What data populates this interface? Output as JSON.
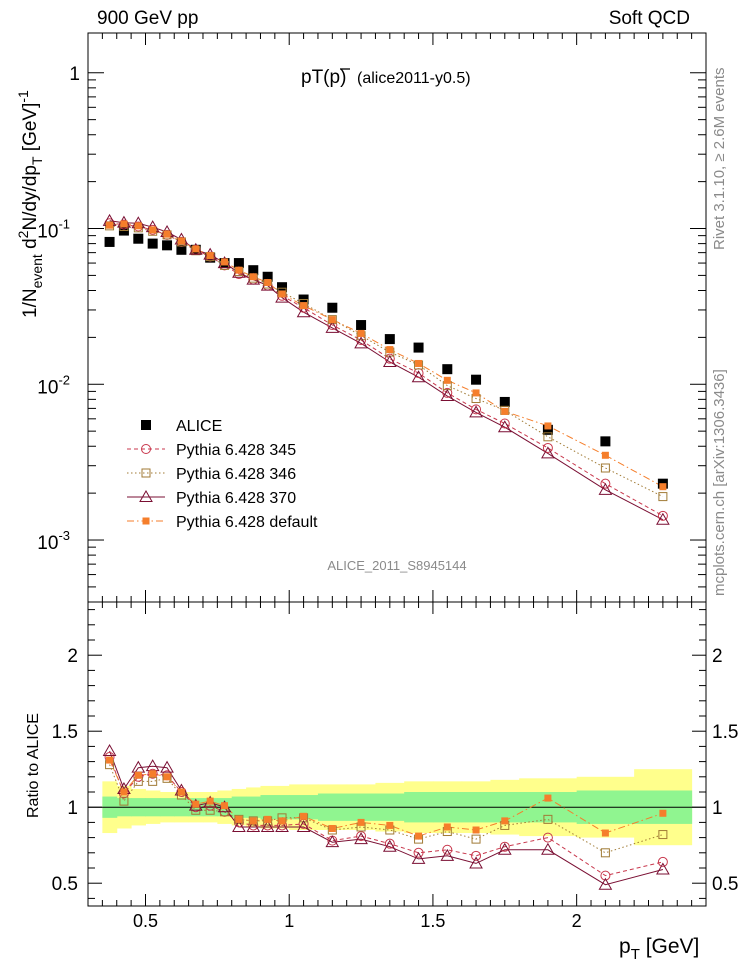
{
  "header": {
    "left": "900 GeV pp",
    "right": "Soft QCD"
  },
  "side_labels": {
    "rivet": "Rivet 3.1.10, ≥ 2.6M events",
    "mcplots": "mcplots.cern.ch [arXiv:1306.3436]"
  },
  "chart_data": [
    {
      "type": "scatter",
      "panel": "main",
      "title": "pT(p̅) (alice2011-y0.5)",
      "title_main": "pT(",
      "title_symbol": "p",
      "title_close": ")",
      "title_tag": "(alice2011-y0.5)",
      "watermark": "ALICE_2011_S8945144",
      "ylabel": "1/N_event d²N/dy/dp_T [GeV]⁻¹",
      "ylabel_parts": {
        "a": "1/N",
        "a_sub": "event",
        "b": " d",
        "b_sup": "2",
        "c": "N/dy/dp",
        "c_sub": "T",
        "d": " [GeV]",
        "d_sup": "-1"
      },
      "yscale": "log",
      "ylim": [
        0.0004,
        1.8
      ],
      "xlim": [
        0.3,
        2.45
      ],
      "yticks": [
        {
          "value": 1,
          "label": "1"
        },
        {
          "value": 0.1,
          "label": "10",
          "exp": "-1"
        },
        {
          "value": 0.01,
          "label": "10",
          "exp": "-2"
        },
        {
          "value": 0.001,
          "label": "10",
          "exp": "-3"
        }
      ],
      "x": [
        0.375,
        0.425,
        0.475,
        0.525,
        0.575,
        0.625,
        0.675,
        0.725,
        0.775,
        0.825,
        0.875,
        0.925,
        0.975,
        1.05,
        1.15,
        1.25,
        1.35,
        1.45,
        1.55,
        1.65,
        1.75,
        1.9,
        2.1,
        2.3
      ],
      "legend": [
        "ALICE",
        "Pythia 6.428 345",
        "Pythia 6.428 346",
        "Pythia 6.428 370",
        "Pythia 6.428 default"
      ],
      "legend_position": "bottom-left",
      "series": [
        {
          "name": "ALICE",
          "color": "#000000",
          "marker": "filled-square",
          "line": "none",
          "values": [
            0.082,
            0.097,
            0.086,
            0.08,
            0.078,
            0.073,
            0.073,
            0.065,
            0.06,
            0.06,
            0.054,
            0.049,
            0.042,
            0.035,
            0.031,
            0.024,
            0.0195,
            0.0172,
            0.0125,
            0.0107,
            0.0077,
            0.0051,
            0.0043,
            0.0023
          ]
        },
        {
          "name": "Pythia 6.428 345",
          "color": "#c8374c",
          "marker": "open-circle",
          "line": "dashed",
          "values": [
            0.108,
            0.106,
            0.103,
            0.098,
            0.091,
            0.082,
            0.073,
            0.066,
            0.058,
            0.051,
            0.047,
            0.043,
            0.037,
            0.031,
            0.024,
            0.0192,
            0.0146,
            0.0118,
            0.0088,
            0.0069,
            0.0056,
            0.0039,
            0.0023,
            0.00143
          ]
        },
        {
          "name": "Pythia 6.428 346",
          "color": "#a07a35",
          "marker": "open-square",
          "line": "dotted",
          "values": [
            0.104,
            0.103,
            0.101,
            0.096,
            0.091,
            0.082,
            0.072,
            0.066,
            0.058,
            0.053,
            0.048,
            0.044,
            0.039,
            0.033,
            0.026,
            0.0205,
            0.0161,
            0.0133,
            0.0098,
            0.0081,
            0.0068,
            0.0046,
            0.0029,
            0.0019
          ]
        },
        {
          "name": "Pythia 6.428 370",
          "color": "#7a0f33",
          "marker": "open-triangle",
          "line": "solid",
          "values": [
            0.112,
            0.109,
            0.108,
            0.102,
            0.095,
            0.085,
            0.073,
            0.068,
            0.06,
            0.052,
            0.047,
            0.043,
            0.036,
            0.029,
            0.023,
            0.0183,
            0.0139,
            0.0111,
            0.0084,
            0.0066,
            0.0053,
            0.0036,
            0.0021,
            0.00135
          ]
        },
        {
          "name": "Pythia 6.428 default",
          "color": "#f57e2b",
          "marker": "filled-square",
          "line": "dashdot",
          "values": [
            0.105,
            0.107,
            0.104,
            0.098,
            0.092,
            0.083,
            0.074,
            0.067,
            0.061,
            0.054,
            0.049,
            0.045,
            0.038,
            0.032,
            0.026,
            0.0212,
            0.0167,
            0.0136,
            0.0106,
            0.0088,
            0.0067,
            0.0054,
            0.0035,
            0.0022
          ]
        }
      ]
    },
    {
      "type": "scatter",
      "panel": "ratio",
      "ylabel": "Ratio to ALICE",
      "xlabel": "p_T [GeV]",
      "xlabel_parts": {
        "a": "p",
        "a_sub": "T",
        "b": " [GeV]"
      },
      "ylim": [
        0.35,
        2.35
      ],
      "xlim": [
        0.3,
        2.45
      ],
      "yticks": [
        {
          "value": 0.5,
          "label": "0.5"
        },
        {
          "value": 1,
          "label": "1"
        },
        {
          "value": 1.5,
          "label": "1.5"
        },
        {
          "value": 2,
          "label": "2"
        }
      ],
      "xticks": [
        {
          "value": 0.5,
          "label": "0.5"
        },
        {
          "value": 1,
          "label": "1"
        },
        {
          "value": 1.5,
          "label": "1.5"
        },
        {
          "value": 2,
          "label": "2"
        }
      ],
      "bin_edges": [
        0.35,
        0.4,
        0.45,
        0.5,
        0.55,
        0.6,
        0.65,
        0.7,
        0.75,
        0.8,
        0.85,
        0.9,
        0.95,
        1.0,
        1.1,
        1.2,
        1.3,
        1.4,
        1.5,
        1.6,
        1.7,
        1.8,
        2.0,
        2.2,
        2.4
      ],
      "band_green_halfwidth": [
        0.07,
        0.06,
        0.06,
        0.06,
        0.06,
        0.06,
        0.06,
        0.06,
        0.06,
        0.07,
        0.07,
        0.08,
        0.08,
        0.08,
        0.09,
        0.09,
        0.09,
        0.1,
        0.1,
        0.1,
        0.1,
        0.1,
        0.11,
        0.11
      ],
      "band_yellow_halfwidth": [
        0.17,
        0.14,
        0.12,
        0.11,
        0.1,
        0.1,
        0.1,
        0.1,
        0.11,
        0.12,
        0.13,
        0.14,
        0.14,
        0.15,
        0.15,
        0.15,
        0.16,
        0.17,
        0.17,
        0.17,
        0.18,
        0.19,
        0.2,
        0.25
      ],
      "x": [
        0.375,
        0.425,
        0.475,
        0.525,
        0.575,
        0.625,
        0.675,
        0.725,
        0.775,
        0.825,
        0.875,
        0.925,
        0.975,
        1.05,
        1.15,
        1.25,
        1.35,
        1.45,
        1.55,
        1.65,
        1.75,
        1.9,
        2.1,
        2.3
      ],
      "series": [
        {
          "name": "Pythia 6.428 345",
          "color": "#c8374c",
          "marker": "open-circle",
          "line": "dashed",
          "values": [
            1.33,
            1.09,
            1.2,
            1.22,
            1.21,
            1.1,
            1.0,
            1.01,
            0.97,
            0.9,
            0.88,
            0.88,
            0.88,
            0.89,
            0.78,
            0.81,
            0.76,
            0.7,
            0.72,
            0.68,
            0.74,
            0.8,
            0.55,
            0.64
          ]
        },
        {
          "name": "Pythia 6.428 346",
          "color": "#a07a35",
          "marker": "open-square",
          "line": "dotted",
          "values": [
            1.28,
            1.04,
            1.17,
            1.17,
            1.19,
            1.08,
            0.98,
            0.98,
            0.97,
            0.92,
            0.91,
            0.91,
            0.93,
            0.93,
            0.85,
            0.87,
            0.85,
            0.79,
            0.84,
            0.79,
            0.88,
            0.92,
            0.7,
            0.82
          ]
        },
        {
          "name": "Pythia 6.428 370",
          "color": "#7a0f33",
          "marker": "open-triangle",
          "line": "solid",
          "values": [
            1.37,
            1.12,
            1.26,
            1.27,
            1.26,
            1.11,
            1.01,
            1.03,
            1.0,
            0.87,
            0.87,
            0.87,
            0.87,
            0.87,
            0.77,
            0.79,
            0.74,
            0.66,
            0.68,
            0.63,
            0.72,
            0.72,
            0.49,
            0.59
          ]
        },
        {
          "name": "Pythia 6.428 default",
          "color": "#f57e2b",
          "marker": "filled-square",
          "line": "dashdot",
          "values": [
            1.31,
            1.1,
            1.21,
            1.22,
            1.2,
            1.1,
            1.02,
            1.04,
            1.01,
            0.92,
            0.91,
            0.92,
            0.91,
            0.94,
            0.86,
            0.9,
            0.88,
            0.81,
            0.87,
            0.85,
            0.91,
            1.06,
            0.83,
            0.96
          ]
        }
      ]
    }
  ]
}
